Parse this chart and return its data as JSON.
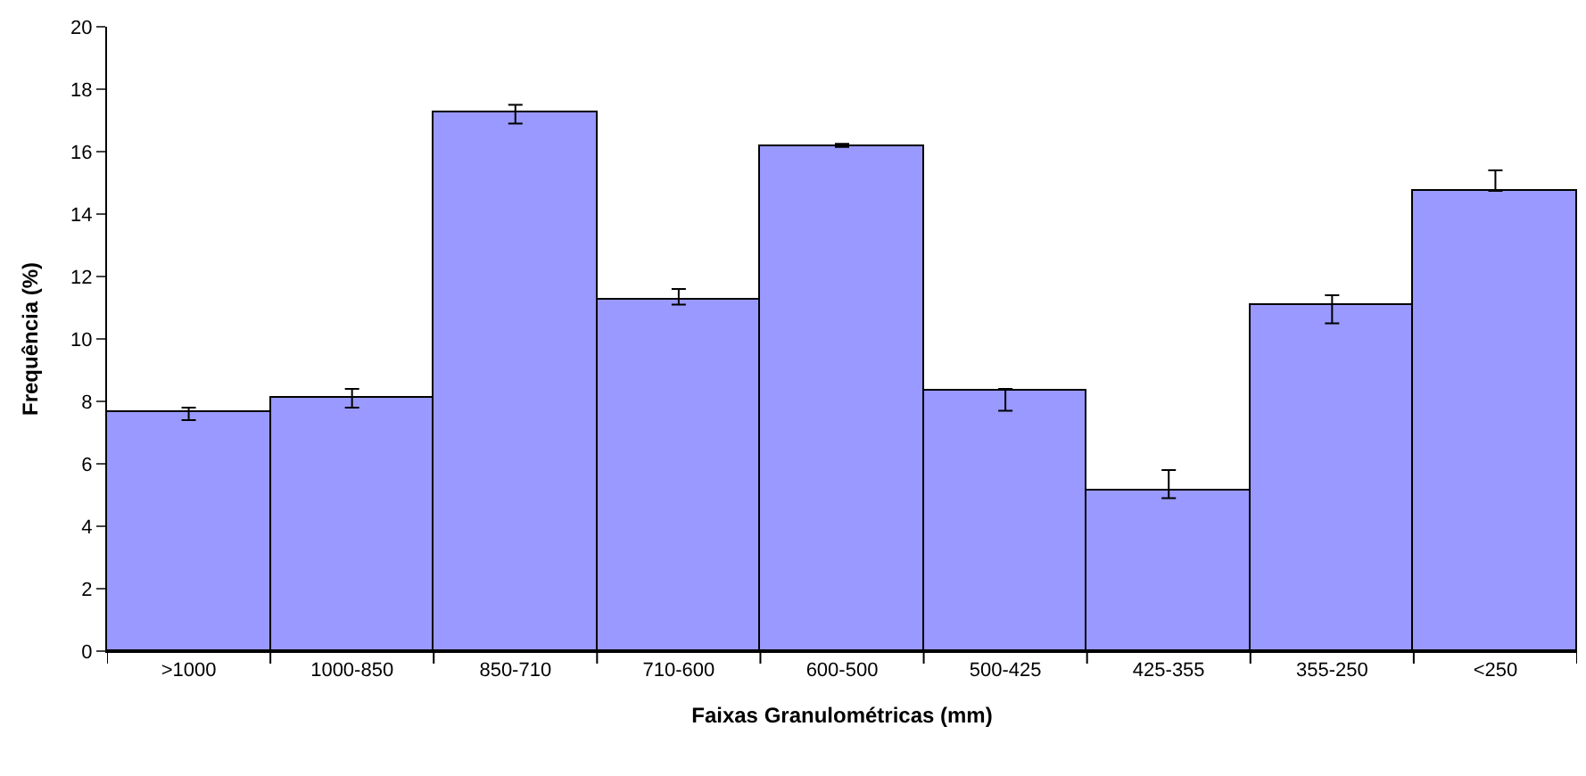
{
  "chart_data": {
    "type": "bar",
    "xlabel": "Faixas Granulométricas (mm)",
    "ylabel": "Frequência (%)",
    "categories": [
      ">1000",
      "1000-850",
      "850-710",
      "710-600",
      "600-500",
      "500-425",
      "425-355",
      "355-250",
      "<250"
    ],
    "values": [
      7.63,
      8.11,
      17.23,
      11.27,
      16.2,
      8.36,
      5.14,
      11.1,
      14.74
    ],
    "errors": [
      [
        7.4,
        7.8
      ],
      [
        7.8,
        8.4
      ],
      [
        16.9,
        17.5
      ],
      [
        11.1,
        11.6
      ],
      [
        16.15,
        16.25
      ],
      [
        7.7,
        8.4
      ],
      [
        4.9,
        5.8
      ],
      [
        10.5,
        11.4
      ],
      [
        14.74,
        15.4
      ]
    ],
    "color": "#9999ff",
    "ylim": [
      0,
      20
    ],
    "yticks": [
      0,
      2,
      4,
      6,
      8,
      10,
      12,
      14,
      16,
      18,
      20
    ],
    "legend": false
  }
}
